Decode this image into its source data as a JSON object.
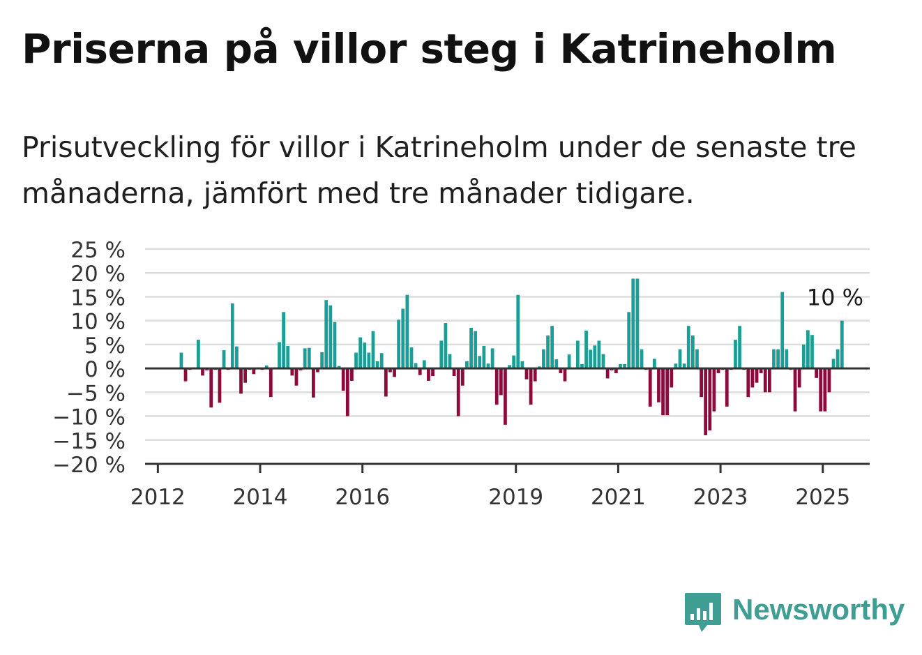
{
  "header": {
    "title": "Priserna på villor steg i Katrineholm",
    "subtitle": "Prisutveckling för villor i Katrineholm under de senaste tre månaderna, jämfört med tre månader tidigare."
  },
  "brand": {
    "name": "Newsworthy",
    "icon": "bar-chart-speech-bubble-icon"
  },
  "colors": {
    "positive": "#1a9e96",
    "negative": "#8c0a3c",
    "grid": "#dddddd",
    "axis": "#333333"
  },
  "chart_data": {
    "type": "bar",
    "title": "",
    "xlabel": "",
    "ylabel": "",
    "ylim": [
      -20,
      25
    ],
    "y_ticks": [
      25,
      20,
      15,
      10,
      5,
      0,
      -5,
      -10,
      -15,
      -20
    ],
    "y_tick_labels": [
      "25 %",
      "20 %",
      "15 %",
      "10 %",
      "5 %",
      "0 %",
      "−5 %",
      "−10 %",
      "−15 %",
      "−20 %"
    ],
    "x_range": [
      "2011-10",
      "2025-12"
    ],
    "x_ticks": [
      {
        "date": "2012-01",
        "label": "2012"
      },
      {
        "date": "2014-01",
        "label": "2014"
      },
      {
        "date": "2016-01",
        "label": "2016"
      },
      {
        "date": "2019-01",
        "label": "2019"
      },
      {
        "date": "2021-01",
        "label": "2021"
      },
      {
        "date": "2023-01",
        "label": "2023"
      },
      {
        "date": "2025-01",
        "label": "2025"
      }
    ],
    "grid": true,
    "annotation": {
      "date": "2025-05",
      "value": 10,
      "label": "10 %"
    },
    "series": [
      {
        "values": [
          {
            "date": "2012-06",
            "value": 3.3
          },
          {
            "date": "2012-07",
            "value": -2.7
          },
          {
            "date": "2012-08",
            "value": -0.3
          },
          {
            "date": "2012-09",
            "value": 0.2
          },
          {
            "date": "2012-10",
            "value": 6.0
          },
          {
            "date": "2012-11",
            "value": -1.5
          },
          {
            "date": "2012-12",
            "value": -0.4
          },
          {
            "date": "2013-01",
            "value": -8.2
          },
          {
            "date": "2013-02",
            "value": -0.3
          },
          {
            "date": "2013-03",
            "value": -7.2
          },
          {
            "date": "2013-04",
            "value": 3.8
          },
          {
            "date": "2013-05",
            "value": -0.3
          },
          {
            "date": "2013-06",
            "value": 13.6
          },
          {
            "date": "2013-07",
            "value": 4.6
          },
          {
            "date": "2013-08",
            "value": -5.3
          },
          {
            "date": "2013-09",
            "value": -3.0
          },
          {
            "date": "2013-10",
            "value": -0.3
          },
          {
            "date": "2013-11",
            "value": -1.2
          },
          {
            "date": "2013-12",
            "value": 0.2
          },
          {
            "date": "2014-01",
            "value": -0.3
          },
          {
            "date": "2014-02",
            "value": 0.6
          },
          {
            "date": "2014-03",
            "value": -6.0
          },
          {
            "date": "2014-04",
            "value": 0.2
          },
          {
            "date": "2014-05",
            "value": 5.5
          },
          {
            "date": "2014-06",
            "value": 11.8
          },
          {
            "date": "2014-07",
            "value": 4.7
          },
          {
            "date": "2014-08",
            "value": -1.5
          },
          {
            "date": "2014-09",
            "value": -3.6
          },
          {
            "date": "2014-10",
            "value": -0.4
          },
          {
            "date": "2014-11",
            "value": 4.2
          },
          {
            "date": "2014-12",
            "value": 4.3
          },
          {
            "date": "2015-01",
            "value": -6.1
          },
          {
            "date": "2015-02",
            "value": -0.8
          },
          {
            "date": "2015-03",
            "value": 3.4
          },
          {
            "date": "2015-04",
            "value": 14.3
          },
          {
            "date": "2015-05",
            "value": 13.2
          },
          {
            "date": "2015-06",
            "value": 9.7
          },
          {
            "date": "2015-07",
            "value": 0.5
          },
          {
            "date": "2015-08",
            "value": -4.7
          },
          {
            "date": "2015-09",
            "value": -10.0
          },
          {
            "date": "2015-10",
            "value": -2.6
          },
          {
            "date": "2015-11",
            "value": 3.3
          },
          {
            "date": "2015-12",
            "value": 6.5
          },
          {
            "date": "2016-01",
            "value": 5.4
          },
          {
            "date": "2016-02",
            "value": 3.3
          },
          {
            "date": "2016-03",
            "value": 7.8
          },
          {
            "date": "2016-04",
            "value": 1.5
          },
          {
            "date": "2016-05",
            "value": 3.2
          },
          {
            "date": "2016-06",
            "value": -5.9
          },
          {
            "date": "2016-07",
            "value": -0.8
          },
          {
            "date": "2016-08",
            "value": -1.8
          },
          {
            "date": "2016-09",
            "value": 10.2
          },
          {
            "date": "2016-10",
            "value": 12.5
          },
          {
            "date": "2016-11",
            "value": 15.4
          },
          {
            "date": "2016-12",
            "value": 4.4
          },
          {
            "date": "2017-01",
            "value": 1.1
          },
          {
            "date": "2017-02",
            "value": -1.4
          },
          {
            "date": "2017-03",
            "value": 1.7
          },
          {
            "date": "2017-04",
            "value": -2.6
          },
          {
            "date": "2017-05",
            "value": -1.6
          },
          {
            "date": "2017-06",
            "value": 0.1
          },
          {
            "date": "2017-07",
            "value": 5.8
          },
          {
            "date": "2017-08",
            "value": 9.5
          },
          {
            "date": "2017-09",
            "value": 3.0
          },
          {
            "date": "2017-10",
            "value": -1.6
          },
          {
            "date": "2017-11",
            "value": -10.0
          },
          {
            "date": "2017-12",
            "value": -3.6
          },
          {
            "date": "2018-01",
            "value": 1.5
          },
          {
            "date": "2018-02",
            "value": 8.5
          },
          {
            "date": "2018-03",
            "value": 7.8
          },
          {
            "date": "2018-04",
            "value": 2.6
          },
          {
            "date": "2018-05",
            "value": 4.7
          },
          {
            "date": "2018-06",
            "value": 1.0
          },
          {
            "date": "2018-07",
            "value": 4.2
          },
          {
            "date": "2018-08",
            "value": -7.6
          },
          {
            "date": "2018-09",
            "value": -5.6
          },
          {
            "date": "2018-10",
            "value": -11.8
          },
          {
            "date": "2018-11",
            "value": 0.7
          },
          {
            "date": "2018-12",
            "value": 2.7
          },
          {
            "date": "2019-01",
            "value": 15.4
          },
          {
            "date": "2019-02",
            "value": 1.5
          },
          {
            "date": "2019-03",
            "value": -2.3
          },
          {
            "date": "2019-04",
            "value": -7.6
          },
          {
            "date": "2019-05",
            "value": -2.7
          },
          {
            "date": "2019-06",
            "value": 0.4
          },
          {
            "date": "2019-07",
            "value": 4.0
          },
          {
            "date": "2019-08",
            "value": 6.9
          },
          {
            "date": "2019-09",
            "value": 8.9
          },
          {
            "date": "2019-10",
            "value": 1.9
          },
          {
            "date": "2019-11",
            "value": -1.0
          },
          {
            "date": "2019-12",
            "value": -2.7
          },
          {
            "date": "2020-01",
            "value": 2.9
          },
          {
            "date": "2020-02",
            "value": 0.1
          },
          {
            "date": "2020-03",
            "value": 5.8
          },
          {
            "date": "2020-04",
            "value": 0.9
          },
          {
            "date": "2020-05",
            "value": 7.9
          },
          {
            "date": "2020-06",
            "value": 3.9
          },
          {
            "date": "2020-07",
            "value": 4.8
          },
          {
            "date": "2020-08",
            "value": 5.8
          },
          {
            "date": "2020-09",
            "value": 3.0
          },
          {
            "date": "2020-10",
            "value": -2.1
          },
          {
            "date": "2020-11",
            "value": -0.4
          },
          {
            "date": "2020-12",
            "value": -1.0
          },
          {
            "date": "2021-01",
            "value": 0.9
          },
          {
            "date": "2021-02",
            "value": 0.9
          },
          {
            "date": "2021-03",
            "value": 11.8
          },
          {
            "date": "2021-04",
            "value": 18.8
          },
          {
            "date": "2021-05",
            "value": 18.8
          },
          {
            "date": "2021-06",
            "value": 4.0
          },
          {
            "date": "2021-07",
            "value": -0.3
          },
          {
            "date": "2021-08",
            "value": -8.0
          },
          {
            "date": "2021-09",
            "value": 2.0
          },
          {
            "date": "2021-10",
            "value": -7.1
          },
          {
            "date": "2021-11",
            "value": -9.8
          },
          {
            "date": "2021-12",
            "value": -9.8
          },
          {
            "date": "2022-01",
            "value": -4.0
          },
          {
            "date": "2022-02",
            "value": 1.0
          },
          {
            "date": "2022-03",
            "value": 4.0
          },
          {
            "date": "2022-04",
            "value": 1.0
          },
          {
            "date": "2022-05",
            "value": 8.9
          },
          {
            "date": "2022-06",
            "value": 6.9
          },
          {
            "date": "2022-07",
            "value": 4.0
          },
          {
            "date": "2022-08",
            "value": -6.0
          },
          {
            "date": "2022-09",
            "value": -14.0
          },
          {
            "date": "2022-10",
            "value": -13.0
          },
          {
            "date": "2022-11",
            "value": -9.0
          },
          {
            "date": "2022-12",
            "value": -1.0
          },
          {
            "date": "2023-01",
            "value": -0.3
          },
          {
            "date": "2023-02",
            "value": -8.0
          },
          {
            "date": "2023-03",
            "value": -0.3
          },
          {
            "date": "2023-04",
            "value": 6.0
          },
          {
            "date": "2023-05",
            "value": 8.9
          },
          {
            "date": "2023-06",
            "value": -0.3
          },
          {
            "date": "2023-07",
            "value": -6.0
          },
          {
            "date": "2023-08",
            "value": -4.0
          },
          {
            "date": "2023-09",
            "value": -3.0
          },
          {
            "date": "2023-10",
            "value": -1.0
          },
          {
            "date": "2023-11",
            "value": -5.0
          },
          {
            "date": "2023-12",
            "value": -5.0
          },
          {
            "date": "2024-01",
            "value": 4.0
          },
          {
            "date": "2024-02",
            "value": 4.0
          },
          {
            "date": "2024-03",
            "value": 16.0
          },
          {
            "date": "2024-04",
            "value": 4.0
          },
          {
            "date": "2024-05",
            "value": -0.3
          },
          {
            "date": "2024-06",
            "value": -9.0
          },
          {
            "date": "2024-07",
            "value": -4.0
          },
          {
            "date": "2024-08",
            "value": 5.0
          },
          {
            "date": "2024-09",
            "value": 8.0
          },
          {
            "date": "2024-10",
            "value": 7.0
          },
          {
            "date": "2024-11",
            "value": -2.0
          },
          {
            "date": "2024-12",
            "value": -9.0
          },
          {
            "date": "2025-01",
            "value": -9.0
          },
          {
            "date": "2025-02",
            "value": -5.0
          },
          {
            "date": "2025-03",
            "value": 2.0
          },
          {
            "date": "2025-04",
            "value": 4.0
          },
          {
            "date": "2025-05",
            "value": 10.0
          }
        ]
      }
    ]
  }
}
